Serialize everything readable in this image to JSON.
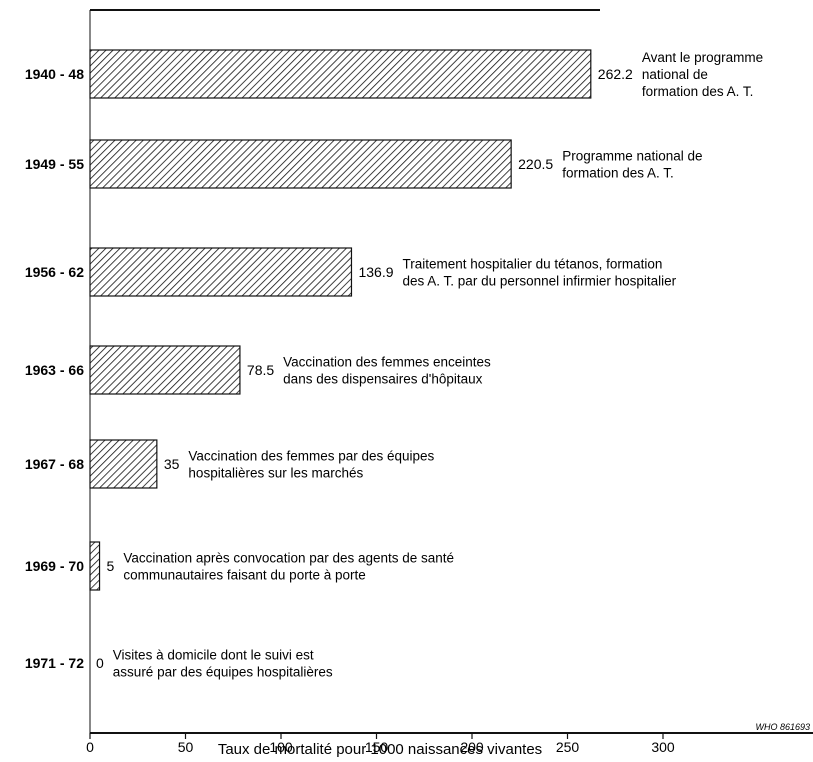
{
  "chart_data": {
    "type": "bar",
    "orientation": "horizontal",
    "categories": [
      "1940 - 48",
      "1949 - 55",
      "1956 - 62",
      "1963 - 66",
      "1967 - 68",
      "1969 - 70",
      "1971 - 72"
    ],
    "values": [
      262.2,
      220.5,
      136.9,
      78.5,
      35,
      5,
      0
    ],
    "value_labels": [
      "262.2",
      "220.5",
      "136.9",
      "78.5",
      "35",
      "5",
      "0"
    ],
    "annotations": [
      [
        "Avant le programme",
        "national de",
        "formation des A. T."
      ],
      [
        "Programme national de",
        "formation des A. T."
      ],
      [
        "Traitement hospitalier du tétanos, formation",
        "des A. T. par du personnel infirmier hospitalier"
      ],
      [
        "Vaccination des femmes enceintes",
        "dans des dispensaires d'hôpitaux"
      ],
      [
        "Vaccination des femmes par des équipes",
        "hospitalières sur les marchés"
      ],
      [
        "Vaccination après convocation par des agents de santé",
        "communautaires faisant du porte à porte"
      ],
      [
        "Visites à domicile dont le suivi est",
        "assuré par des équipes hospitalières"
      ]
    ],
    "xlabel": "Taux de mortalité pour 1000 naissances vivantes",
    "xticks": [
      0,
      50,
      100,
      150,
      200,
      250,
      300
    ],
    "xlim": [
      0,
      300
    ],
    "bar_fill": "hatched",
    "credit": "WHO 861693"
  },
  "colors": {
    "ink": "#111111",
    "background": "#ffffff"
  }
}
